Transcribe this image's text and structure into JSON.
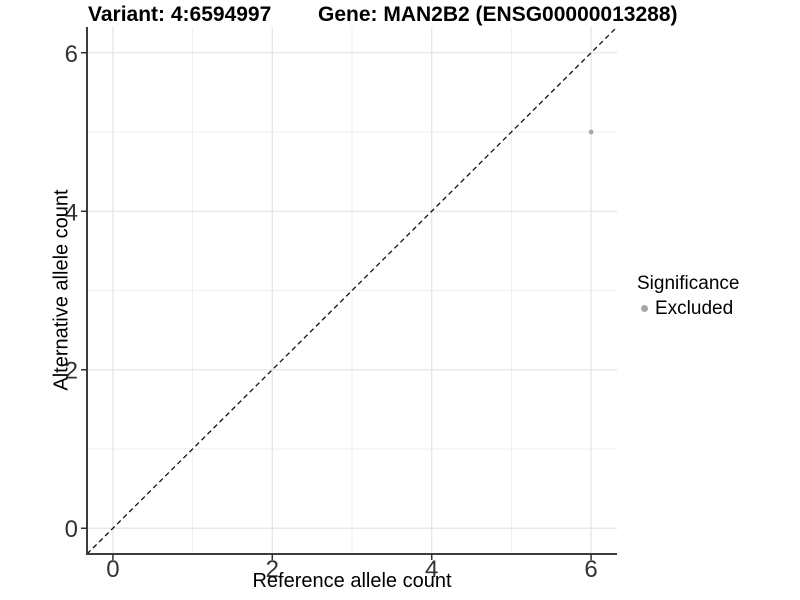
{
  "figure": {
    "titles": {
      "variant": "Variant: 4:6594997",
      "gene": "Gene: MAN2B2 (ENSG00000013288)"
    },
    "axes": {
      "x_label": "Reference allele count",
      "y_label": "Alternative allele count"
    },
    "legend": {
      "title": "Significance",
      "items": [
        {
          "label": "Excluded",
          "color": "#a8a8a8"
        }
      ]
    }
  },
  "chart_data": {
    "type": "scatter",
    "title": "Variant: 4:6594997 | Gene: MAN2B2 (ENSG00000013288)",
    "xlabel": "Reference allele count",
    "ylabel": "Alternative allele count",
    "xlim": [
      -0.325,
      6.325
    ],
    "ylim": [
      -0.325,
      6.325
    ],
    "x_ticks": [
      0,
      2,
      4,
      6
    ],
    "y_ticks": [
      0,
      2,
      4,
      6
    ],
    "x_minor_gridlines": [
      1,
      3,
      5
    ],
    "y_minor_gridlines": [
      1,
      3,
      5
    ],
    "grid": true,
    "legend_position": "right",
    "series": [
      {
        "name": "Excluded",
        "color": "#a8a8a8",
        "points": [
          [
            6,
            5
          ]
        ]
      }
    ],
    "reference_line": {
      "kind": "identity",
      "from": [
        -0.325,
        -0.325
      ],
      "to": [
        6.325,
        6.325
      ],
      "style": "dashed",
      "color": "#111111"
    }
  },
  "colors": {
    "background": "#ffffff",
    "grid_major": "#e4e4e4",
    "grid_minor": "#efefef",
    "axis_line": "#3c3c3c",
    "tick_mark": "#333333",
    "tick_label": "#333333",
    "point": "#a8a8a8"
  }
}
